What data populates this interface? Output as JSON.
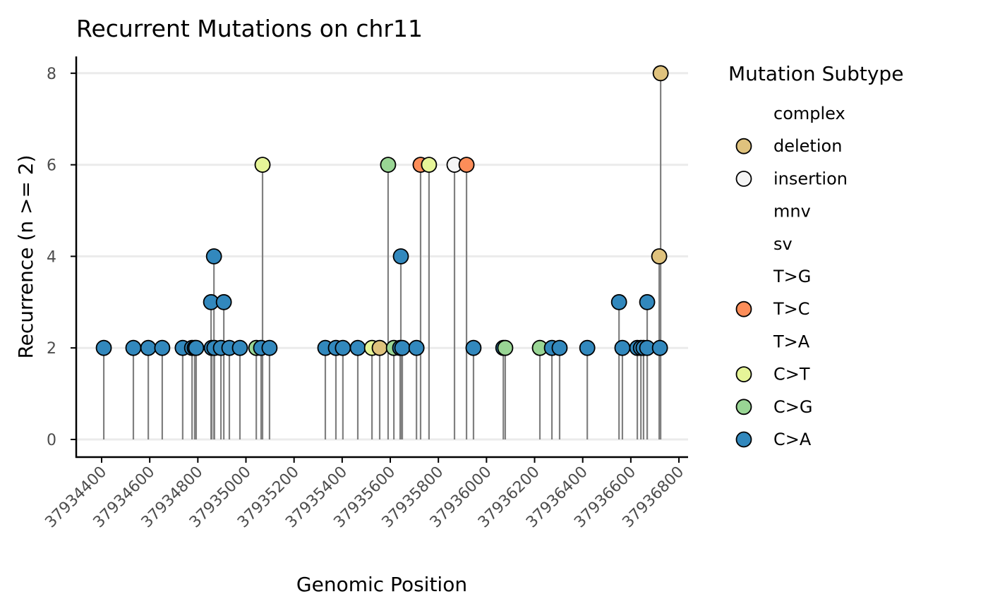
{
  "chart_data": {
    "type": "lollipop",
    "title": "Recurrent Mutations on chr11",
    "xlabel": "Genomic Position",
    "ylabel": "Recurrence (n >= 2)",
    "xlim": [
      37934390,
      37936830
    ],
    "ylim": [
      -0.4,
      8.4
    ],
    "xticks": [
      37934400,
      37934600,
      37934800,
      37935000,
      37935200,
      37935400,
      37935600,
      37935800,
      37936000,
      37936200,
      37936400,
      37936600,
      37936800
    ],
    "yticks": [
      0,
      2,
      4,
      6,
      8
    ],
    "grid": "horizontal",
    "legend": {
      "title": "Mutation Subtype",
      "placement": "right",
      "entries": [
        {
          "label": "complex",
          "color": null
        },
        {
          "label": "deletion",
          "color": "#DFC27D"
        },
        {
          "label": "insertion",
          "color": "#F5F5F5"
        },
        {
          "label": "mnv",
          "color": null
        },
        {
          "label": "sv",
          "color": null
        },
        {
          "label": "T>G",
          "color": null
        },
        {
          "label": "T>C",
          "color": "#FC8D59"
        },
        {
          "label": "T>A",
          "color": null
        },
        {
          "label": "C>T",
          "color": "#E6F598"
        },
        {
          "label": "C>G",
          "color": "#99D594"
        },
        {
          "label": "C>A",
          "color": "#3288BD"
        }
      ]
    },
    "points": [
      {
        "x": 37934409,
        "y": 2,
        "type": "C>A"
      },
      {
        "x": 37934532,
        "y": 2,
        "type": "C>A"
      },
      {
        "x": 37934594,
        "y": 2,
        "type": "C>A"
      },
      {
        "x": 37934652,
        "y": 2,
        "type": "C>A"
      },
      {
        "x": 37934737,
        "y": 2,
        "type": "C>A"
      },
      {
        "x": 37934776,
        "y": 2,
        "type": "C>A"
      },
      {
        "x": 37934787,
        "y": 2,
        "type": "C>A"
      },
      {
        "x": 37934793,
        "y": 2,
        "type": "C>A"
      },
      {
        "x": 37934855,
        "y": 3,
        "type": "C>A"
      },
      {
        "x": 37934858,
        "y": 2,
        "type": "C>A"
      },
      {
        "x": 37934867,
        "y": 4,
        "type": "C>A"
      },
      {
        "x": 37934869,
        "y": 2,
        "type": "C>A"
      },
      {
        "x": 37934896,
        "y": 2,
        "type": "C>A"
      },
      {
        "x": 37934908,
        "y": 3,
        "type": "C>A"
      },
      {
        "x": 37934931,
        "y": 2,
        "type": "C>A"
      },
      {
        "x": 37934975,
        "y": 2,
        "type": "C>A"
      },
      {
        "x": 37935043,
        "y": 2,
        "type": "C>G"
      },
      {
        "x": 37935063,
        "y": 2,
        "type": "C>A"
      },
      {
        "x": 37935069,
        "y": 6,
        "type": "C>T"
      },
      {
        "x": 37935098,
        "y": 2,
        "type": "C>A"
      },
      {
        "x": 37935330,
        "y": 2,
        "type": "C>A"
      },
      {
        "x": 37935374,
        "y": 2,
        "type": "C>A"
      },
      {
        "x": 37935403,
        "y": 2,
        "type": "C>A"
      },
      {
        "x": 37935465,
        "y": 2,
        "type": "C>A"
      },
      {
        "x": 37935524,
        "y": 2,
        "type": "C>T"
      },
      {
        "x": 37935556,
        "y": 2,
        "type": "deletion"
      },
      {
        "x": 37935591,
        "y": 6,
        "type": "C>G"
      },
      {
        "x": 37935615,
        "y": 2,
        "type": "C>G"
      },
      {
        "x": 37935644,
        "y": 4,
        "type": "C>A"
      },
      {
        "x": 37935641,
        "y": 2,
        "type": "C>A"
      },
      {
        "x": 37935650,
        "y": 2,
        "type": "C>A"
      },
      {
        "x": 37935709,
        "y": 2,
        "type": "C>A"
      },
      {
        "x": 37935726,
        "y": 6,
        "type": "T>C"
      },
      {
        "x": 37935761,
        "y": 6,
        "type": "C>T"
      },
      {
        "x": 37935867,
        "y": 6,
        "type": "insertion"
      },
      {
        "x": 37935917,
        "y": 6,
        "type": "T>C"
      },
      {
        "x": 37935946,
        "y": 2,
        "type": "C>A"
      },
      {
        "x": 37936070,
        "y": 2,
        "type": "C>A"
      },
      {
        "x": 37936078,
        "y": 2,
        "type": "C>G"
      },
      {
        "x": 37936222,
        "y": 2,
        "type": "C>G"
      },
      {
        "x": 37936272,
        "y": 2,
        "type": "C>A"
      },
      {
        "x": 37936304,
        "y": 2,
        "type": "C>A"
      },
      {
        "x": 37936419,
        "y": 2,
        "type": "C>A"
      },
      {
        "x": 37936551,
        "y": 3,
        "type": "C>A"
      },
      {
        "x": 37936565,
        "y": 2,
        "type": "C>A"
      },
      {
        "x": 37936627,
        "y": 2,
        "type": "C>A"
      },
      {
        "x": 37936642,
        "y": 2,
        "type": "C>A"
      },
      {
        "x": 37936653,
        "y": 2,
        "type": "C>A"
      },
      {
        "x": 37936668,
        "y": 3,
        "type": "C>A"
      },
      {
        "x": 37936668,
        "y": 2,
        "type": "C>A"
      },
      {
        "x": 37936724,
        "y": 8,
        "type": "deletion"
      },
      {
        "x": 37936718,
        "y": 4,
        "type": "deletion"
      },
      {
        "x": 37936721,
        "y": 2,
        "type": "C>A"
      }
    ]
  }
}
